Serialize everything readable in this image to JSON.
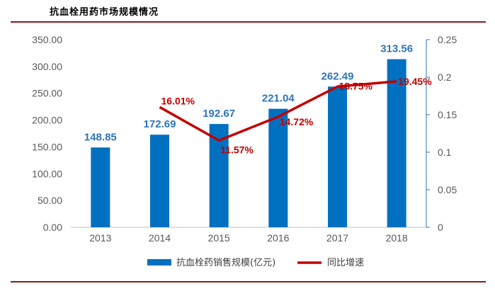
{
  "header": {
    "title": "抗血栓用药市场规模情况"
  },
  "chart_data": {
    "type": "bar",
    "categories": [
      "2013",
      "2014",
      "2015",
      "2016",
      "2017",
      "2018"
    ],
    "series": [
      {
        "name": "抗血栓药销售规模(亿元)",
        "type": "bar",
        "axis": "left",
        "color": "#0070c0",
        "values": [
          148.85,
          172.69,
          192.67,
          221.04,
          262.49,
          313.56
        ],
        "labels": [
          "148.85",
          "172.69",
          "192.67",
          "221.04",
          "262.49",
          "313.56"
        ]
      },
      {
        "name": "同比增速",
        "type": "line",
        "axis": "right",
        "color": "#c00000",
        "values": [
          null,
          0.1601,
          0.1157,
          0.1472,
          0.1875,
          0.1945
        ],
        "labels": [
          "",
          "16.01%",
          "11.57%",
          "14.72%",
          "18.75%",
          "19.45%"
        ]
      }
    ],
    "y_left": {
      "ylim": [
        0,
        350
      ],
      "ticks": [
        "0.00",
        "50.00",
        "100.00",
        "150.00",
        "200.00",
        "250.00",
        "300.00",
        "350.00"
      ]
    },
    "y_right": {
      "ylim": [
        0,
        0.25
      ],
      "ticks": [
        "0",
        "0.05",
        "0.1",
        "0.15",
        "0.2",
        "0.25"
      ]
    },
    "grid": false,
    "legend": "bottom"
  }
}
